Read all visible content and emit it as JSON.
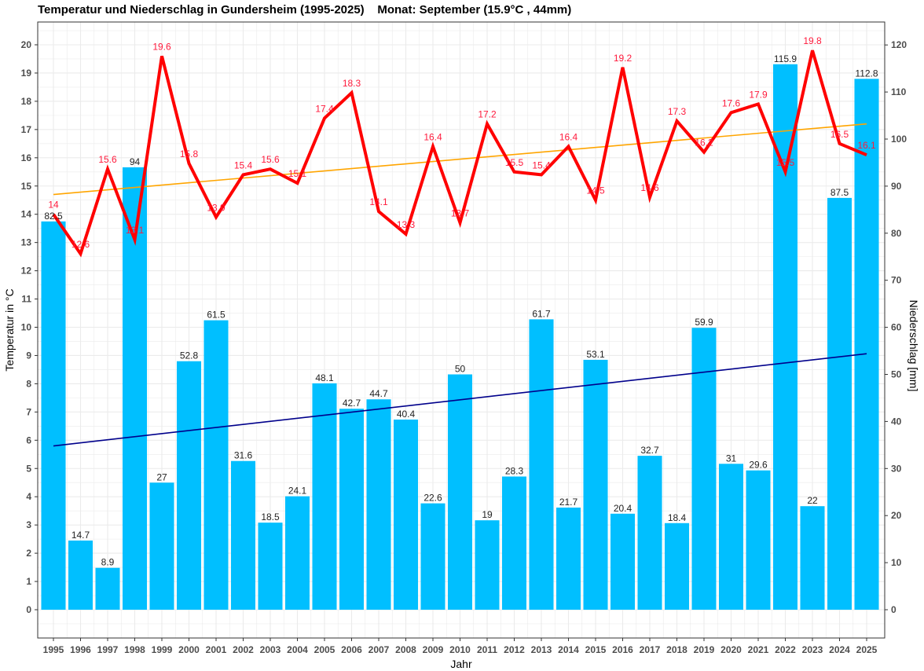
{
  "chart_data": {
    "type": "bar+line",
    "title": "Temperatur und Niederschlag in Gundersheim (1995-2025)    Monat: September (15.9°C , 44mm)",
    "xlabel": "Jahr",
    "ylabel_left": "Temperatur in °C",
    "ylabel_right": "Niederschlag [mm]",
    "ylim_left": [
      -1,
      20.8
    ],
    "ylim_right": [
      -6,
      124.8
    ],
    "yticks_left": [
      0,
      1,
      2,
      3,
      4,
      5,
      6,
      7,
      8,
      9,
      10,
      11,
      12,
      13,
      14,
      15,
      16,
      17,
      18,
      19,
      20
    ],
    "yticks_right": [
      0,
      10,
      20,
      30,
      40,
      50,
      60,
      70,
      80,
      90,
      100,
      110,
      120
    ],
    "grid": true,
    "categories": [
      "1995",
      "1996",
      "1997",
      "1998",
      "1999",
      "2000",
      "2001",
      "2002",
      "2003",
      "2004",
      "2005",
      "2006",
      "2007",
      "2008",
      "2009",
      "2010",
      "2011",
      "2012",
      "2013",
      "2014",
      "2015",
      "2016",
      "2017",
      "2018",
      "2019",
      "2020",
      "2021",
      "2022",
      "2023",
      "2024",
      "2025"
    ],
    "precipitation": [
      82.5,
      14.7,
      8.9,
      94,
      27,
      52.8,
      61.5,
      31.6,
      18.5,
      24.1,
      48.1,
      42.7,
      44.7,
      40.4,
      22.6,
      50,
      19,
      28.3,
      61.7,
      21.7,
      53.1,
      20.4,
      32.7,
      18.4,
      59.9,
      31,
      29.6,
      115.9,
      22,
      87.5,
      112.8
    ],
    "temperature": [
      14,
      12.6,
      15.6,
      13.1,
      19.6,
      15.8,
      13.9,
      15.4,
      15.6,
      15.1,
      17.4,
      18.3,
      14.1,
      13.3,
      16.4,
      13.7,
      17.2,
      15.5,
      15.4,
      16.4,
      14.5,
      19.2,
      14.6,
      17.3,
      16.2,
      17.6,
      17.9,
      15.5,
      19.8,
      16.5,
      16.1
    ],
    "temperature_trend": [
      14.7,
      17.2
    ],
    "precipitation_trend": [
      34.8,
      54.4
    ],
    "colors": {
      "bars": "#00BFFF",
      "temperature": "#FF0000",
      "temperature_labels": "#FF1A3C",
      "temperature_trend": "#FFA500",
      "precipitation_trend": "#00008B",
      "grid": "#EBEBEB"
    }
  }
}
